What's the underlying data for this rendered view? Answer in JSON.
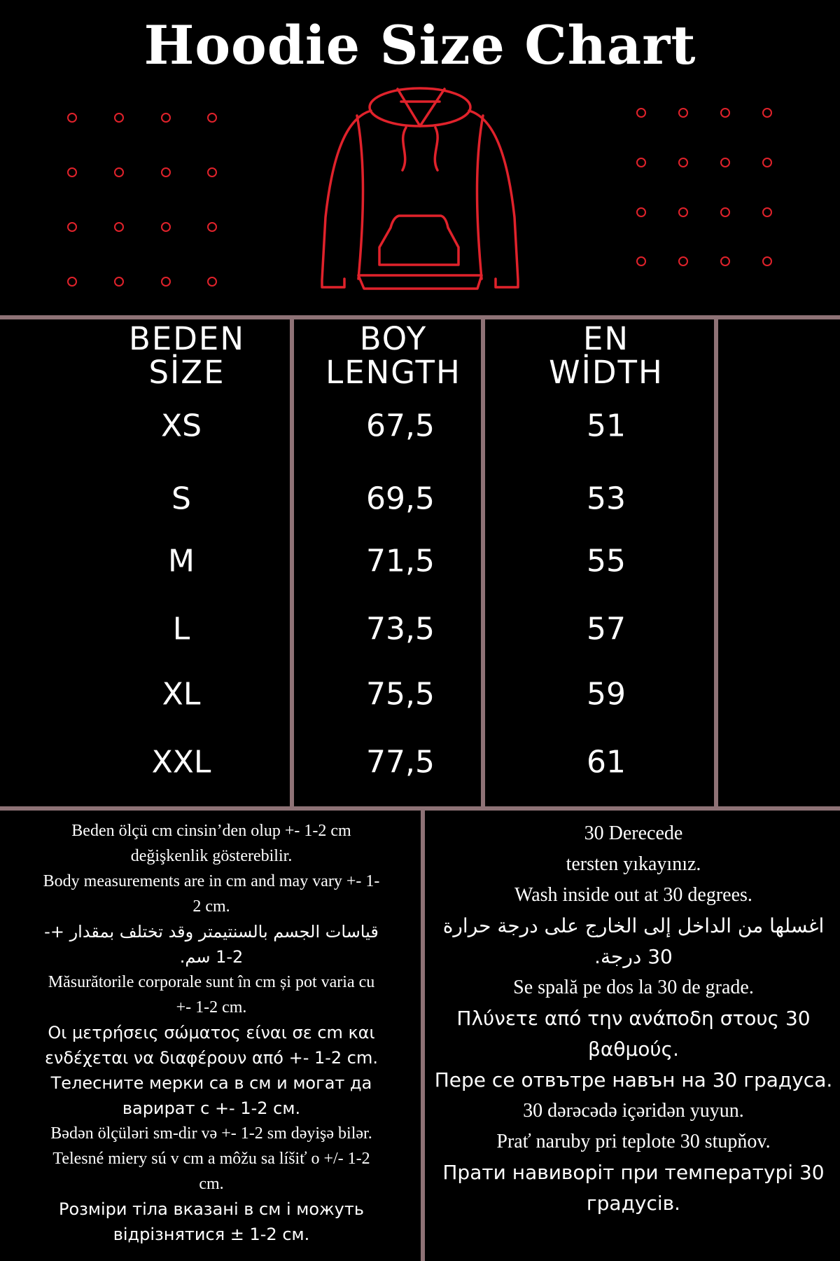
{
  "title": "Hoodie Size Chart",
  "accent_color": "#e0222b",
  "divider_color": "#8e7276",
  "illustration": "hoodie-icon",
  "table": {
    "headers": [
      {
        "line1": "BEDEN",
        "line2": "SİZE"
      },
      {
        "line1": "BOY",
        "line2": "LENGTH"
      },
      {
        "line1": "EN",
        "line2": "WİDTH"
      }
    ],
    "rows": [
      {
        "size": "XS",
        "length": "67,5",
        "width": "51"
      },
      {
        "size": "S",
        "length": "69,5",
        "width": "53"
      },
      {
        "size": "M",
        "length": "71,5",
        "width": "55"
      },
      {
        "size": "L",
        "length": "73,5",
        "width": "57"
      },
      {
        "size": "XL",
        "length": "75,5",
        "width": "59"
      },
      {
        "size": "XXL",
        "length": "77,5",
        "width": "61"
      }
    ]
  },
  "notes_measurements": [
    "Beden ölçü cm cinsin’den olup +- 1-2 cm\ndeğişkenlik gösterebilir.",
    "Body measurements are in cm and may vary +- 1-\n2 cm.",
    "قياسات الجسم بالسنتيمتر وقد تختلف بمقدار +-\n1-2 سم.",
    "Măsurătorile corporale sunt în cm și pot varia cu\n+- 1-2 cm.",
    "Οι μετρήσεις σώματος είναι σε cm και\nενδέχεται να διαφέρουν από +- 1-2 cm.",
    "Телесните мерки са в см и могат да\nварират с +- 1-2 см.",
    "Bədən ölçüləri sm-dir və +- 1-2 sm dəyişə bilər.",
    "Telesné miery sú v cm a môžu sa líšiť o +/- 1-2\ncm.",
    "Розміри тіла вказані в см і можуть\nвідрізнятися ± 1-2 см."
  ],
  "notes_washing": [
    "30 Derecede\ntersten yıkayınız.",
    "Wash inside out at 30 degrees.",
    "اغسلها من الداخل إلى الخارج على درجة حرارة\n30 درجة.",
    "Se spală pe dos la 30 de grade.",
    "Πλύνετε από την ανάποδη στους 30\nβαθμούς.",
    "Пере се отвътре навън на 30 градуса.",
    "30 dərəcədə içəridən yuyun.",
    "Prať naruby pri teplote 30 stupňov.",
    "Прати навиворіт при температурі 30\nградусів."
  ]
}
